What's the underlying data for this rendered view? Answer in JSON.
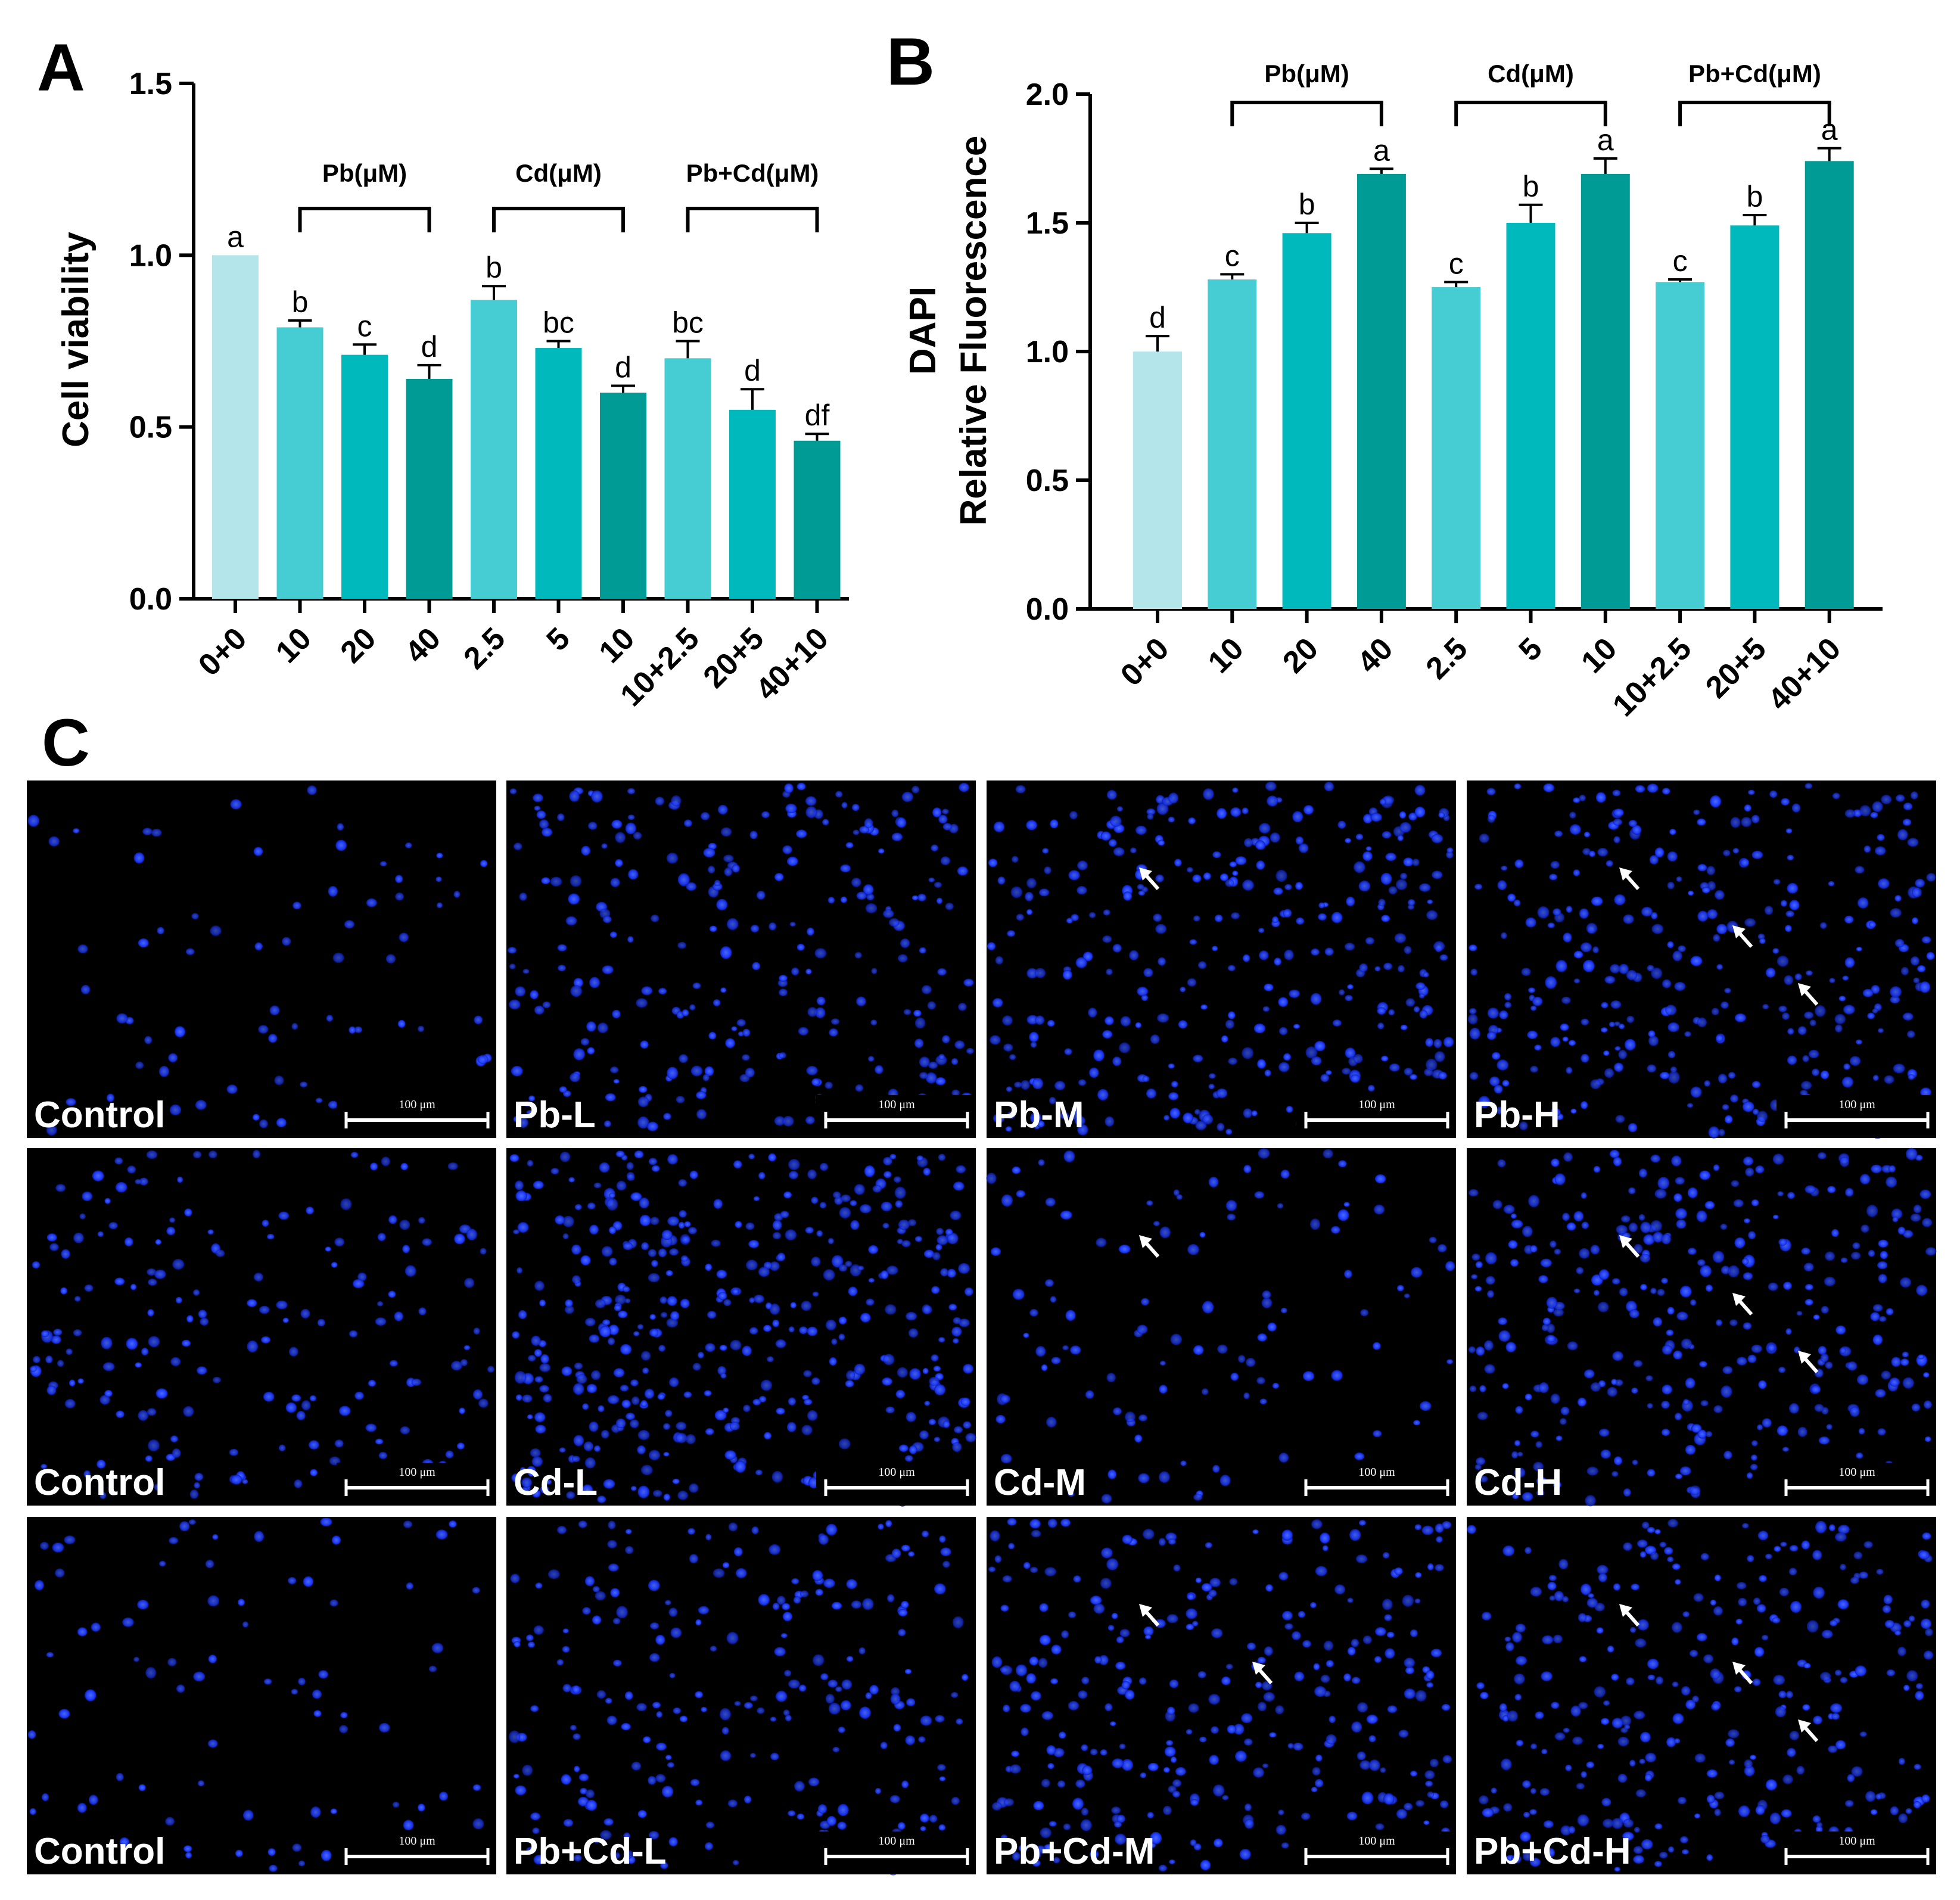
{
  "panel_letters": [
    "A",
    "B",
    "C"
  ],
  "colors": {
    "control": "#b3e5ea",
    "low": "#45cdd3",
    "mid": "#00b9bd",
    "high": "#009b94",
    "nucleus": "#1f3cff",
    "image_bg": "#000000",
    "annotation": "#ffffff"
  },
  "chart_data": [
    {
      "panel": "A",
      "type": "bar",
      "title": "",
      "xlabel": "",
      "ylabel": "Cell viability",
      "ylim": [
        0,
        1.5
      ],
      "yticks": [
        "0.0",
        "0.5",
        "1.0",
        "1.5"
      ],
      "categories": [
        "0+0",
        "10",
        "20",
        "40",
        "2.5",
        "5",
        "10",
        "10+2.5",
        "20+5",
        "40+10"
      ],
      "values": [
        1.0,
        0.79,
        0.71,
        0.64,
        0.87,
        0.73,
        0.6,
        0.7,
        0.55,
        0.46
      ],
      "errors": [
        0.0,
        0.02,
        0.03,
        0.04,
        0.04,
        0.02,
        0.02,
        0.05,
        0.06,
        0.02
      ],
      "levels": [
        "control",
        "low",
        "mid",
        "high",
        "low",
        "mid",
        "high",
        "low",
        "mid",
        "high"
      ],
      "significance": [
        "a",
        "b",
        "c",
        "d",
        "b",
        "bc",
        "d",
        "bc",
        "d",
        "df"
      ],
      "groups": [
        {
          "label": "Pb(μM)",
          "start": 1,
          "end": 3
        },
        {
          "label": "Cd(μM)",
          "start": 4,
          "end": 6
        },
        {
          "label": "Pb+Cd(μM)",
          "start": 7,
          "end": 9
        }
      ]
    },
    {
      "panel": "B",
      "type": "bar",
      "title": "",
      "xlabel": "",
      "ylabel": [
        "DAPI",
        "Relative Fluorescence"
      ],
      "ylim": [
        0,
        2.0
      ],
      "yticks": [
        "0.0",
        "0.5",
        "1.0",
        "1.5",
        "2.0"
      ],
      "categories": [
        "0+0",
        "10",
        "20",
        "40",
        "2.5",
        "5",
        "10",
        "10+2.5",
        "20+5",
        "40+10"
      ],
      "values": [
        1.0,
        1.28,
        1.46,
        1.69,
        1.25,
        1.5,
        1.69,
        1.27,
        1.49,
        1.74
      ],
      "errors": [
        0.06,
        0.02,
        0.04,
        0.02,
        0.02,
        0.07,
        0.06,
        0.01,
        0.04,
        0.05
      ],
      "levels": [
        "control",
        "low",
        "mid",
        "high",
        "low",
        "mid",
        "high",
        "low",
        "mid",
        "high"
      ],
      "significance": [
        "d",
        "c",
        "b",
        "a",
        "c",
        "b",
        "a",
        "c",
        "b",
        "a"
      ],
      "groups": [
        {
          "label": "Pb(μM)",
          "start": 1,
          "end": 3
        },
        {
          "label": "Cd(μM)",
          "start": 4,
          "end": 6
        },
        {
          "label": "Pb+Cd(μM)",
          "start": 7,
          "end": 9
        }
      ]
    }
  ],
  "micrographs": {
    "scale_bar_label": "100 μm",
    "rows": [
      [
        "Control",
        "Pb-L",
        "Pb-M",
        "Pb-H"
      ],
      [
        "Control",
        "Cd-L",
        "Cd-M",
        "Cd-H"
      ],
      [
        "Control",
        "Pb+Cd-L",
        "Pb+Cd-M",
        "Pb+Cd-H"
      ]
    ],
    "density": [
      [
        70,
        260,
        330,
        320
      ],
      [
        180,
        420,
        110,
        330
      ],
      [
        80,
        230,
        300,
        300
      ]
    ],
    "arrow_counts": [
      [
        0,
        0,
        1,
        3
      ],
      [
        0,
        0,
        1,
        3
      ],
      [
        0,
        0,
        2,
        3
      ]
    ]
  }
}
